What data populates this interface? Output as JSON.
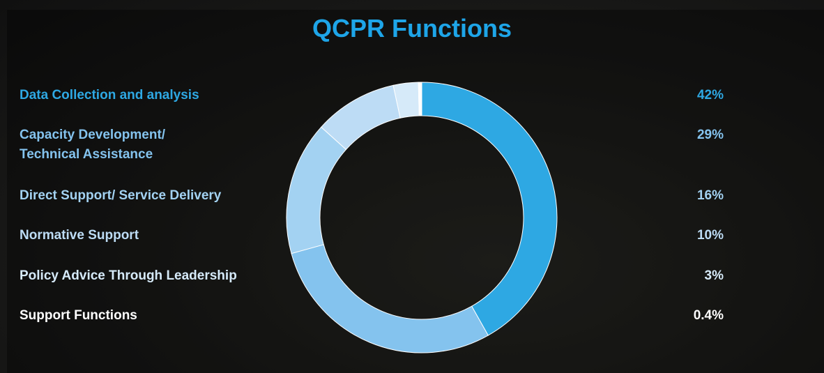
{
  "chart_data": {
    "type": "donut",
    "title": "QCPR Functions",
    "categories": [
      "Data Collection and analysis",
      "Capacity Development/\nTechnical Assistance",
      "Direct Support/ Service Delivery",
      "Normative Support",
      "Policy Advice Through Leadership",
      "Support Functions"
    ],
    "values": [
      42,
      29,
      16,
      10,
      3,
      0.4
    ],
    "value_labels": [
      "42%",
      "29%",
      "16%",
      "10%",
      "3%",
      "0.4%"
    ],
    "colors": [
      "#2ea8e3",
      "#84c3ee",
      "#a3d2f2",
      "#bddcf5",
      "#d6eaf9",
      "#ffffff"
    ]
  }
}
